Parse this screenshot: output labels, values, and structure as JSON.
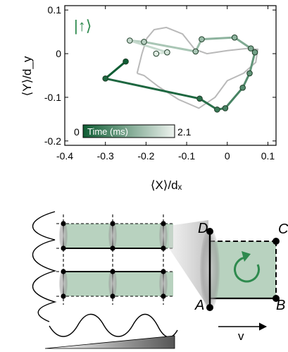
{
  "chart_data": {
    "type": "line",
    "title": "",
    "xlabel": "⟨X⟩/dₓ",
    "ylabel": "⟨Y⟩/d_y",
    "xlim": [
      -0.4,
      0.12
    ],
    "ylim": [
      -0.21,
      0.11
    ],
    "x_ticks": [
      -0.4,
      -0.3,
      -0.2,
      -0.1,
      0,
      0.1
    ],
    "x_tick_labels": [
      "-0.4",
      "-0.3",
      "-0.2",
      "-0.1",
      "0",
      "0.1"
    ],
    "y_ticks": [
      0.1,
      0,
      -0.1,
      -0.2
    ],
    "y_tick_labels": [
      "0.1",
      "0",
      "-0.1",
      "-0.2"
    ],
    "grid": false,
    "state_label": "|↑⟩",
    "colorbar": {
      "label": "Time (ms)",
      "min_label": "0",
      "max_label": "2.1",
      "min": 0,
      "max": 2.1
    },
    "series": [
      {
        "values": [
          {
            "x": -0.25,
            "y": -0.018,
            "t": 0.0
          },
          {
            "x": -0.3,
            "y": -0.057,
            "t": 0.14
          },
          {
            "x": -0.068,
            "y": -0.103,
            "t": 0.28
          },
          {
            "x": -0.025,
            "y": -0.128,
            "t": 0.42
          },
          {
            "x": -0.005,
            "y": -0.125,
            "t": 0.56
          },
          {
            "x": 0.038,
            "y": -0.078,
            "t": 0.7
          },
          {
            "x": 0.055,
            "y": -0.045,
            "t": 0.84
          },
          {
            "x": 0.068,
            "y": 0.003,
            "t": 0.98
          },
          {
            "x": 0.058,
            "y": 0.012,
            "t": 1.12
          },
          {
            "x": 0.018,
            "y": 0.037,
            "t": 1.26
          },
          {
            "x": -0.063,
            "y": 0.033,
            "t": 1.4
          },
          {
            "x": -0.078,
            "y": 0.005,
            "t": 1.54
          },
          {
            "x": -0.205,
            "y": 0.027,
            "t": 1.68
          },
          {
            "x": -0.24,
            "y": 0.03,
            "t": 1.82
          },
          {
            "x": -0.148,
            "y": 0.003,
            "t": 1.96
          },
          {
            "x": -0.175,
            "y": 0.0,
            "t": 2.1
          }
        ]
      }
    ],
    "theory_curve": [
      [
        -0.222,
        -0.045
      ],
      [
        -0.21,
        0.0
      ],
      [
        -0.198,
        0.035
      ],
      [
        -0.18,
        0.055
      ],
      [
        -0.15,
        0.06
      ],
      [
        -0.11,
        0.045
      ],
      [
        -0.08,
        0.01
      ],
      [
        -0.05,
        0.0
      ],
      [
        0.0,
        0.007
      ],
      [
        0.05,
        0.012
      ],
      [
        0.075,
        0.01
      ],
      [
        0.07,
        -0.02
      ],
      [
        0.04,
        -0.045
      ],
      [
        0.0,
        -0.062
      ],
      [
        -0.03,
        -0.1
      ],
      [
        -0.07,
        -0.125
      ],
      [
        -0.12,
        -0.105
      ],
      [
        -0.17,
        -0.075
      ],
      [
        -0.205,
        -0.05
      ],
      [
        -0.222,
        -0.045
      ]
    ]
  },
  "diagram": {
    "corner_labels": {
      "top_left": "D",
      "top_right": "C",
      "bottom_left": "A",
      "bottom_right": "B"
    },
    "velocity_label": "v"
  }
}
